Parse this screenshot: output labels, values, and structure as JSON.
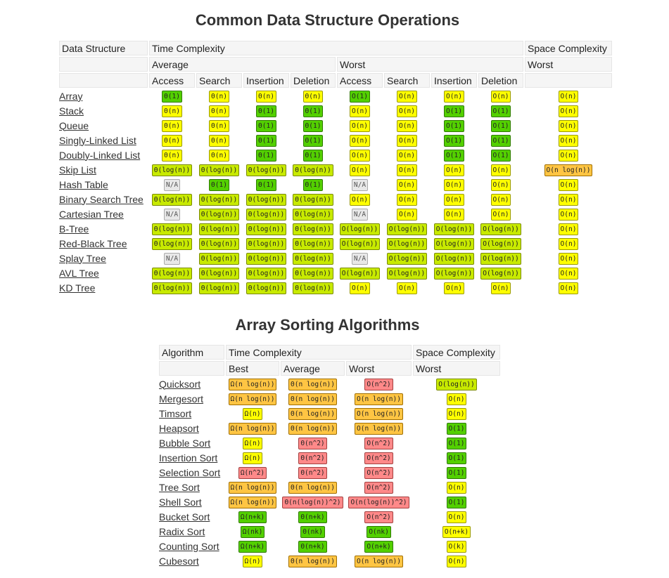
{
  "ds": {
    "title": "Common Data Structure Operations",
    "hdr_data_structure": "Data Structure",
    "hdr_time": "Time Complexity",
    "hdr_space": "Space Complexity",
    "hdr_average": "Average",
    "hdr_worst": "Worst",
    "hdr_space_worst": "Worst",
    "ops": [
      "Access",
      "Search",
      "Insertion",
      "Deletion",
      "Access",
      "Search",
      "Insertion",
      "Deletion"
    ],
    "rows": [
      {
        "name": "Array",
        "cells": [
          [
            "Θ(1)",
            "green"
          ],
          [
            "Θ(n)",
            "yellow"
          ],
          [
            "Θ(n)",
            "yellow"
          ],
          [
            "Θ(n)",
            "yellow"
          ],
          [
            "O(1)",
            "green"
          ],
          [
            "O(n)",
            "yellow"
          ],
          [
            "O(n)",
            "yellow"
          ],
          [
            "O(n)",
            "yellow"
          ],
          [
            "O(n)",
            "yellow"
          ]
        ]
      },
      {
        "name": "Stack",
        "cells": [
          [
            "Θ(n)",
            "yellow"
          ],
          [
            "Θ(n)",
            "yellow"
          ],
          [
            "Θ(1)",
            "green"
          ],
          [
            "Θ(1)",
            "green"
          ],
          [
            "O(n)",
            "yellow"
          ],
          [
            "O(n)",
            "yellow"
          ],
          [
            "O(1)",
            "green"
          ],
          [
            "O(1)",
            "green"
          ],
          [
            "O(n)",
            "yellow"
          ]
        ]
      },
      {
        "name": "Queue",
        "cells": [
          [
            "Θ(n)",
            "yellow"
          ],
          [
            "Θ(n)",
            "yellow"
          ],
          [
            "Θ(1)",
            "green"
          ],
          [
            "Θ(1)",
            "green"
          ],
          [
            "O(n)",
            "yellow"
          ],
          [
            "O(n)",
            "yellow"
          ],
          [
            "O(1)",
            "green"
          ],
          [
            "O(1)",
            "green"
          ],
          [
            "O(n)",
            "yellow"
          ]
        ]
      },
      {
        "name": "Singly-Linked List",
        "cells": [
          [
            "Θ(n)",
            "yellow"
          ],
          [
            "Θ(n)",
            "yellow"
          ],
          [
            "Θ(1)",
            "green"
          ],
          [
            "Θ(1)",
            "green"
          ],
          [
            "O(n)",
            "yellow"
          ],
          [
            "O(n)",
            "yellow"
          ],
          [
            "O(1)",
            "green"
          ],
          [
            "O(1)",
            "green"
          ],
          [
            "O(n)",
            "yellow"
          ]
        ]
      },
      {
        "name": "Doubly-Linked List",
        "cells": [
          [
            "Θ(n)",
            "yellow"
          ],
          [
            "Θ(n)",
            "yellow"
          ],
          [
            "Θ(1)",
            "green"
          ],
          [
            "Θ(1)",
            "green"
          ],
          [
            "O(n)",
            "yellow"
          ],
          [
            "O(n)",
            "yellow"
          ],
          [
            "O(1)",
            "green"
          ],
          [
            "O(1)",
            "green"
          ],
          [
            "O(n)",
            "yellow"
          ]
        ]
      },
      {
        "name": "Skip List",
        "cells": [
          [
            "Θ(log(n))",
            "yellow-green"
          ],
          [
            "Θ(log(n))",
            "yellow-green"
          ],
          [
            "Θ(log(n))",
            "yellow-green"
          ],
          [
            "Θ(log(n))",
            "yellow-green"
          ],
          [
            "O(n)",
            "yellow"
          ],
          [
            "O(n)",
            "yellow"
          ],
          [
            "O(n)",
            "yellow"
          ],
          [
            "O(n)",
            "yellow"
          ],
          [
            "O(n log(n))",
            "orange"
          ]
        ]
      },
      {
        "name": "Hash Table",
        "cells": [
          [
            "N/A",
            "gray"
          ],
          [
            "Θ(1)",
            "green"
          ],
          [
            "Θ(1)",
            "green"
          ],
          [
            "Θ(1)",
            "green"
          ],
          [
            "N/A",
            "gray"
          ],
          [
            "O(n)",
            "yellow"
          ],
          [
            "O(n)",
            "yellow"
          ],
          [
            "O(n)",
            "yellow"
          ],
          [
            "O(n)",
            "yellow"
          ]
        ]
      },
      {
        "name": "Binary Search Tree",
        "cells": [
          [
            "Θ(log(n))",
            "yellow-green"
          ],
          [
            "Θ(log(n))",
            "yellow-green"
          ],
          [
            "Θ(log(n))",
            "yellow-green"
          ],
          [
            "Θ(log(n))",
            "yellow-green"
          ],
          [
            "O(n)",
            "yellow"
          ],
          [
            "O(n)",
            "yellow"
          ],
          [
            "O(n)",
            "yellow"
          ],
          [
            "O(n)",
            "yellow"
          ],
          [
            "O(n)",
            "yellow"
          ]
        ]
      },
      {
        "name": "Cartesian Tree",
        "cells": [
          [
            "N/A",
            "gray"
          ],
          [
            "Θ(log(n))",
            "yellow-green"
          ],
          [
            "Θ(log(n))",
            "yellow-green"
          ],
          [
            "Θ(log(n))",
            "yellow-green"
          ],
          [
            "N/A",
            "gray"
          ],
          [
            "O(n)",
            "yellow"
          ],
          [
            "O(n)",
            "yellow"
          ],
          [
            "O(n)",
            "yellow"
          ],
          [
            "O(n)",
            "yellow"
          ]
        ]
      },
      {
        "name": "B-Tree",
        "cells": [
          [
            "Θ(log(n))",
            "yellow-green"
          ],
          [
            "Θ(log(n))",
            "yellow-green"
          ],
          [
            "Θ(log(n))",
            "yellow-green"
          ],
          [
            "Θ(log(n))",
            "yellow-green"
          ],
          [
            "O(log(n))",
            "yellow-green"
          ],
          [
            "O(log(n))",
            "yellow-green"
          ],
          [
            "O(log(n))",
            "yellow-green"
          ],
          [
            "O(log(n))",
            "yellow-green"
          ],
          [
            "O(n)",
            "yellow"
          ]
        ]
      },
      {
        "name": "Red-Black Tree",
        "cells": [
          [
            "Θ(log(n))",
            "yellow-green"
          ],
          [
            "Θ(log(n))",
            "yellow-green"
          ],
          [
            "Θ(log(n))",
            "yellow-green"
          ],
          [
            "Θ(log(n))",
            "yellow-green"
          ],
          [
            "O(log(n))",
            "yellow-green"
          ],
          [
            "O(log(n))",
            "yellow-green"
          ],
          [
            "O(log(n))",
            "yellow-green"
          ],
          [
            "O(log(n))",
            "yellow-green"
          ],
          [
            "O(n)",
            "yellow"
          ]
        ]
      },
      {
        "name": "Splay Tree",
        "cells": [
          [
            "N/A",
            "gray"
          ],
          [
            "Θ(log(n))",
            "yellow-green"
          ],
          [
            "Θ(log(n))",
            "yellow-green"
          ],
          [
            "Θ(log(n))",
            "yellow-green"
          ],
          [
            "N/A",
            "gray"
          ],
          [
            "O(log(n))",
            "yellow-green"
          ],
          [
            "O(log(n))",
            "yellow-green"
          ],
          [
            "O(log(n))",
            "yellow-green"
          ],
          [
            "O(n)",
            "yellow"
          ]
        ]
      },
      {
        "name": "AVL Tree",
        "cells": [
          [
            "Θ(log(n))",
            "yellow-green"
          ],
          [
            "Θ(log(n))",
            "yellow-green"
          ],
          [
            "Θ(log(n))",
            "yellow-green"
          ],
          [
            "Θ(log(n))",
            "yellow-green"
          ],
          [
            "O(log(n))",
            "yellow-green"
          ],
          [
            "O(log(n))",
            "yellow-green"
          ],
          [
            "O(log(n))",
            "yellow-green"
          ],
          [
            "O(log(n))",
            "yellow-green"
          ],
          [
            "O(n)",
            "yellow"
          ]
        ]
      },
      {
        "name": "KD Tree",
        "cells": [
          [
            "Θ(log(n))",
            "yellow-green"
          ],
          [
            "Θ(log(n))",
            "yellow-green"
          ],
          [
            "Θ(log(n))",
            "yellow-green"
          ],
          [
            "Θ(log(n))",
            "yellow-green"
          ],
          [
            "O(n)",
            "yellow"
          ],
          [
            "O(n)",
            "yellow"
          ],
          [
            "O(n)",
            "yellow"
          ],
          [
            "O(n)",
            "yellow"
          ],
          [
            "O(n)",
            "yellow"
          ]
        ]
      }
    ]
  },
  "sort": {
    "title": "Array Sorting Algorithms",
    "hdr_algorithm": "Algorithm",
    "hdr_time": "Time Complexity",
    "hdr_space": "Space Complexity",
    "hdr_best": "Best",
    "hdr_average": "Average",
    "hdr_worst": "Worst",
    "hdr_space_worst": "Worst",
    "rows": [
      {
        "name": "Quicksort",
        "cells": [
          [
            "Ω(n log(n))",
            "orange"
          ],
          [
            "Θ(n log(n))",
            "orange"
          ],
          [
            "O(n^2)",
            "red"
          ],
          [
            "O(log(n))",
            "yellow-green"
          ]
        ]
      },
      {
        "name": "Mergesort",
        "cells": [
          [
            "Ω(n log(n))",
            "orange"
          ],
          [
            "Θ(n log(n))",
            "orange"
          ],
          [
            "O(n log(n))",
            "orange"
          ],
          [
            "O(n)",
            "yellow"
          ]
        ]
      },
      {
        "name": "Timsort",
        "cells": [
          [
            "Ω(n)",
            "yellow"
          ],
          [
            "Θ(n log(n))",
            "orange"
          ],
          [
            "O(n log(n))",
            "orange"
          ],
          [
            "O(n)",
            "yellow"
          ]
        ]
      },
      {
        "name": "Heapsort",
        "cells": [
          [
            "Ω(n log(n))",
            "orange"
          ],
          [
            "Θ(n log(n))",
            "orange"
          ],
          [
            "O(n log(n))",
            "orange"
          ],
          [
            "O(1)",
            "green"
          ]
        ]
      },
      {
        "name": "Bubble Sort",
        "cells": [
          [
            "Ω(n)",
            "yellow"
          ],
          [
            "Θ(n^2)",
            "red"
          ],
          [
            "O(n^2)",
            "red"
          ],
          [
            "O(1)",
            "green"
          ]
        ]
      },
      {
        "name": "Insertion Sort",
        "cells": [
          [
            "Ω(n)",
            "yellow"
          ],
          [
            "Θ(n^2)",
            "red"
          ],
          [
            "O(n^2)",
            "red"
          ],
          [
            "O(1)",
            "green"
          ]
        ]
      },
      {
        "name": "Selection Sort",
        "cells": [
          [
            "Ω(n^2)",
            "red"
          ],
          [
            "Θ(n^2)",
            "red"
          ],
          [
            "O(n^2)",
            "red"
          ],
          [
            "O(1)",
            "green"
          ]
        ]
      },
      {
        "name": "Tree Sort",
        "cells": [
          [
            "Ω(n log(n))",
            "orange"
          ],
          [
            "Θ(n log(n))",
            "orange"
          ],
          [
            "O(n^2)",
            "red"
          ],
          [
            "O(n)",
            "yellow"
          ]
        ]
      },
      {
        "name": "Shell Sort",
        "cells": [
          [
            "Ω(n log(n))",
            "orange"
          ],
          [
            "Θ(n(log(n))^2)",
            "red"
          ],
          [
            "O(n(log(n))^2)",
            "red"
          ],
          [
            "O(1)",
            "green"
          ]
        ]
      },
      {
        "name": "Bucket Sort",
        "cells": [
          [
            "Ω(n+k)",
            "green"
          ],
          [
            "Θ(n+k)",
            "green"
          ],
          [
            "O(n^2)",
            "red"
          ],
          [
            "O(n)",
            "yellow"
          ]
        ]
      },
      {
        "name": "Radix Sort",
        "cells": [
          [
            "Ω(nk)",
            "green"
          ],
          [
            "Θ(nk)",
            "green"
          ],
          [
            "O(nk)",
            "green"
          ],
          [
            "O(n+k)",
            "yellow"
          ]
        ]
      },
      {
        "name": "Counting Sort",
        "cells": [
          [
            "Ω(n+k)",
            "green"
          ],
          [
            "Θ(n+k)",
            "green"
          ],
          [
            "O(n+k)",
            "green"
          ],
          [
            "O(k)",
            "yellow"
          ]
        ]
      },
      {
        "name": "Cubesort",
        "cells": [
          [
            "Ω(n)",
            "yellow"
          ],
          [
            "Θ(n log(n))",
            "orange"
          ],
          [
            "O(n log(n))",
            "orange"
          ],
          [
            "O(n)",
            "yellow"
          ]
        ]
      }
    ]
  }
}
